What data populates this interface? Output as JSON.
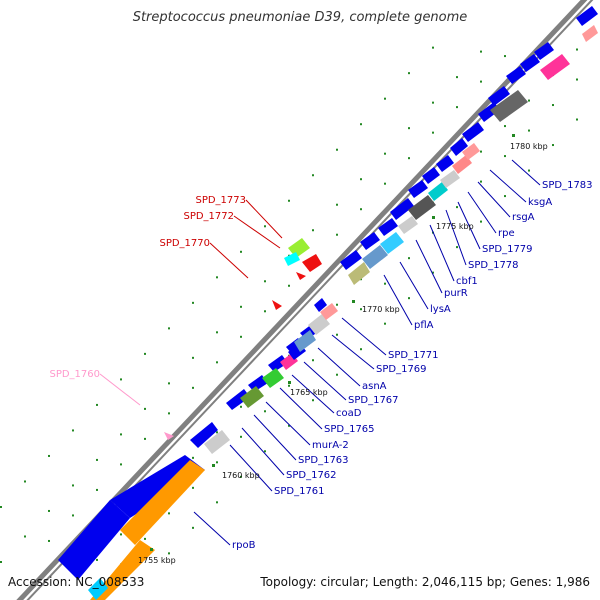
{
  "title": "Streptococcus pneumoniae D39, complete genome",
  "footer": {
    "accession": "Accession: NC_008533",
    "summary": "Topology: circular; Length: 2,046,115 bp; Genes: 1,986"
  },
  "colors": {
    "backbone": "#808080",
    "gene_blue": "#0000ee",
    "label_blue": "#0000aa",
    "label_red": "#cc0000",
    "label_pink": "#ff99cc",
    "orange": "#ff9900",
    "dots_green": "#228822"
  },
  "ticks": [
    "1755 kbp",
    "1760 kbp",
    "1765 kbp",
    "1770 kbp",
    "1775 kbp",
    "1780 kbp"
  ],
  "gene_labels": [
    {
      "text": "SPD_1783",
      "color": "blue"
    },
    {
      "text": "ksgA",
      "color": "blue"
    },
    {
      "text": "rsgA",
      "color": "blue"
    },
    {
      "text": "rpe",
      "color": "blue"
    },
    {
      "text": "SPD_1779",
      "color": "blue"
    },
    {
      "text": "SPD_1778",
      "color": "blue"
    },
    {
      "text": "cbf1",
      "color": "blue"
    },
    {
      "text": "purR",
      "color": "blue"
    },
    {
      "text": "lysA",
      "color": "blue"
    },
    {
      "text": "pflA",
      "color": "blue"
    },
    {
      "text": "SPD_1771",
      "color": "blue"
    },
    {
      "text": "SPD_1769",
      "color": "blue"
    },
    {
      "text": "asnA",
      "color": "blue"
    },
    {
      "text": "SPD_1767",
      "color": "blue"
    },
    {
      "text": "coaD",
      "color": "blue"
    },
    {
      "text": "SPD_1765",
      "color": "blue"
    },
    {
      "text": "murA-2",
      "color": "blue"
    },
    {
      "text": "SPD_1763",
      "color": "blue"
    },
    {
      "text": "SPD_1762",
      "color": "blue"
    },
    {
      "text": "SPD_1761",
      "color": "blue"
    },
    {
      "text": "rpoB",
      "color": "blue"
    },
    {
      "text": "SPD_1773",
      "color": "red"
    },
    {
      "text": "SPD_1772",
      "color": "red"
    },
    {
      "text": "SPD_1770",
      "color": "red"
    },
    {
      "text": "SPD_1760",
      "color": "pink"
    }
  ]
}
